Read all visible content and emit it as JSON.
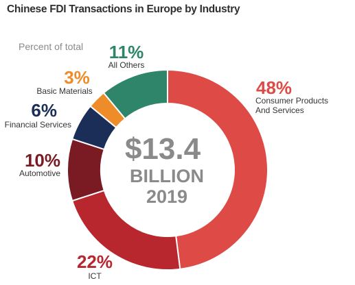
{
  "header": {
    "title": "Chinese FDI Transactions in Europe by  Industry",
    "subtitle": "Percent of total"
  },
  "center": {
    "amount": "$13.4",
    "unit": "BILLION",
    "year": "2019"
  },
  "chart_data": {
    "type": "pie",
    "title": "Chinese FDI Transactions in Europe by  Industry",
    "subtitle": "Percent of total",
    "categories": [
      "Consumer Products And Services",
      "ICT",
      "Automotive",
      "Financial Services",
      "Basic Materials",
      "All Others"
    ],
    "values": [
      48,
      22,
      10,
      6,
      3,
      11
    ],
    "unit": "%",
    "style": "donut",
    "colors": [
      "#de4a45",
      "#b8262e",
      "#7a1a22",
      "#1b2e57",
      "#ef8c2a",
      "#2e8569"
    ],
    "labels": [
      {
        "pct": "48%",
        "lines": [
          "Consumer Products",
          "And Services"
        ]
      },
      {
        "pct": "22%",
        "lines": [
          "ICT"
        ]
      },
      {
        "pct": "10%",
        "lines": [
          "Automotive"
        ]
      },
      {
        "pct": "6%",
        "lines": [
          "Financial Services"
        ]
      },
      {
        "pct": "3%",
        "lines": [
          "Basic Materials"
        ]
      },
      {
        "pct": "11%",
        "lines": [
          "All Others"
        ]
      }
    ],
    "center_text": [
      "$13.4",
      "BILLION",
      "2019"
    ]
  }
}
